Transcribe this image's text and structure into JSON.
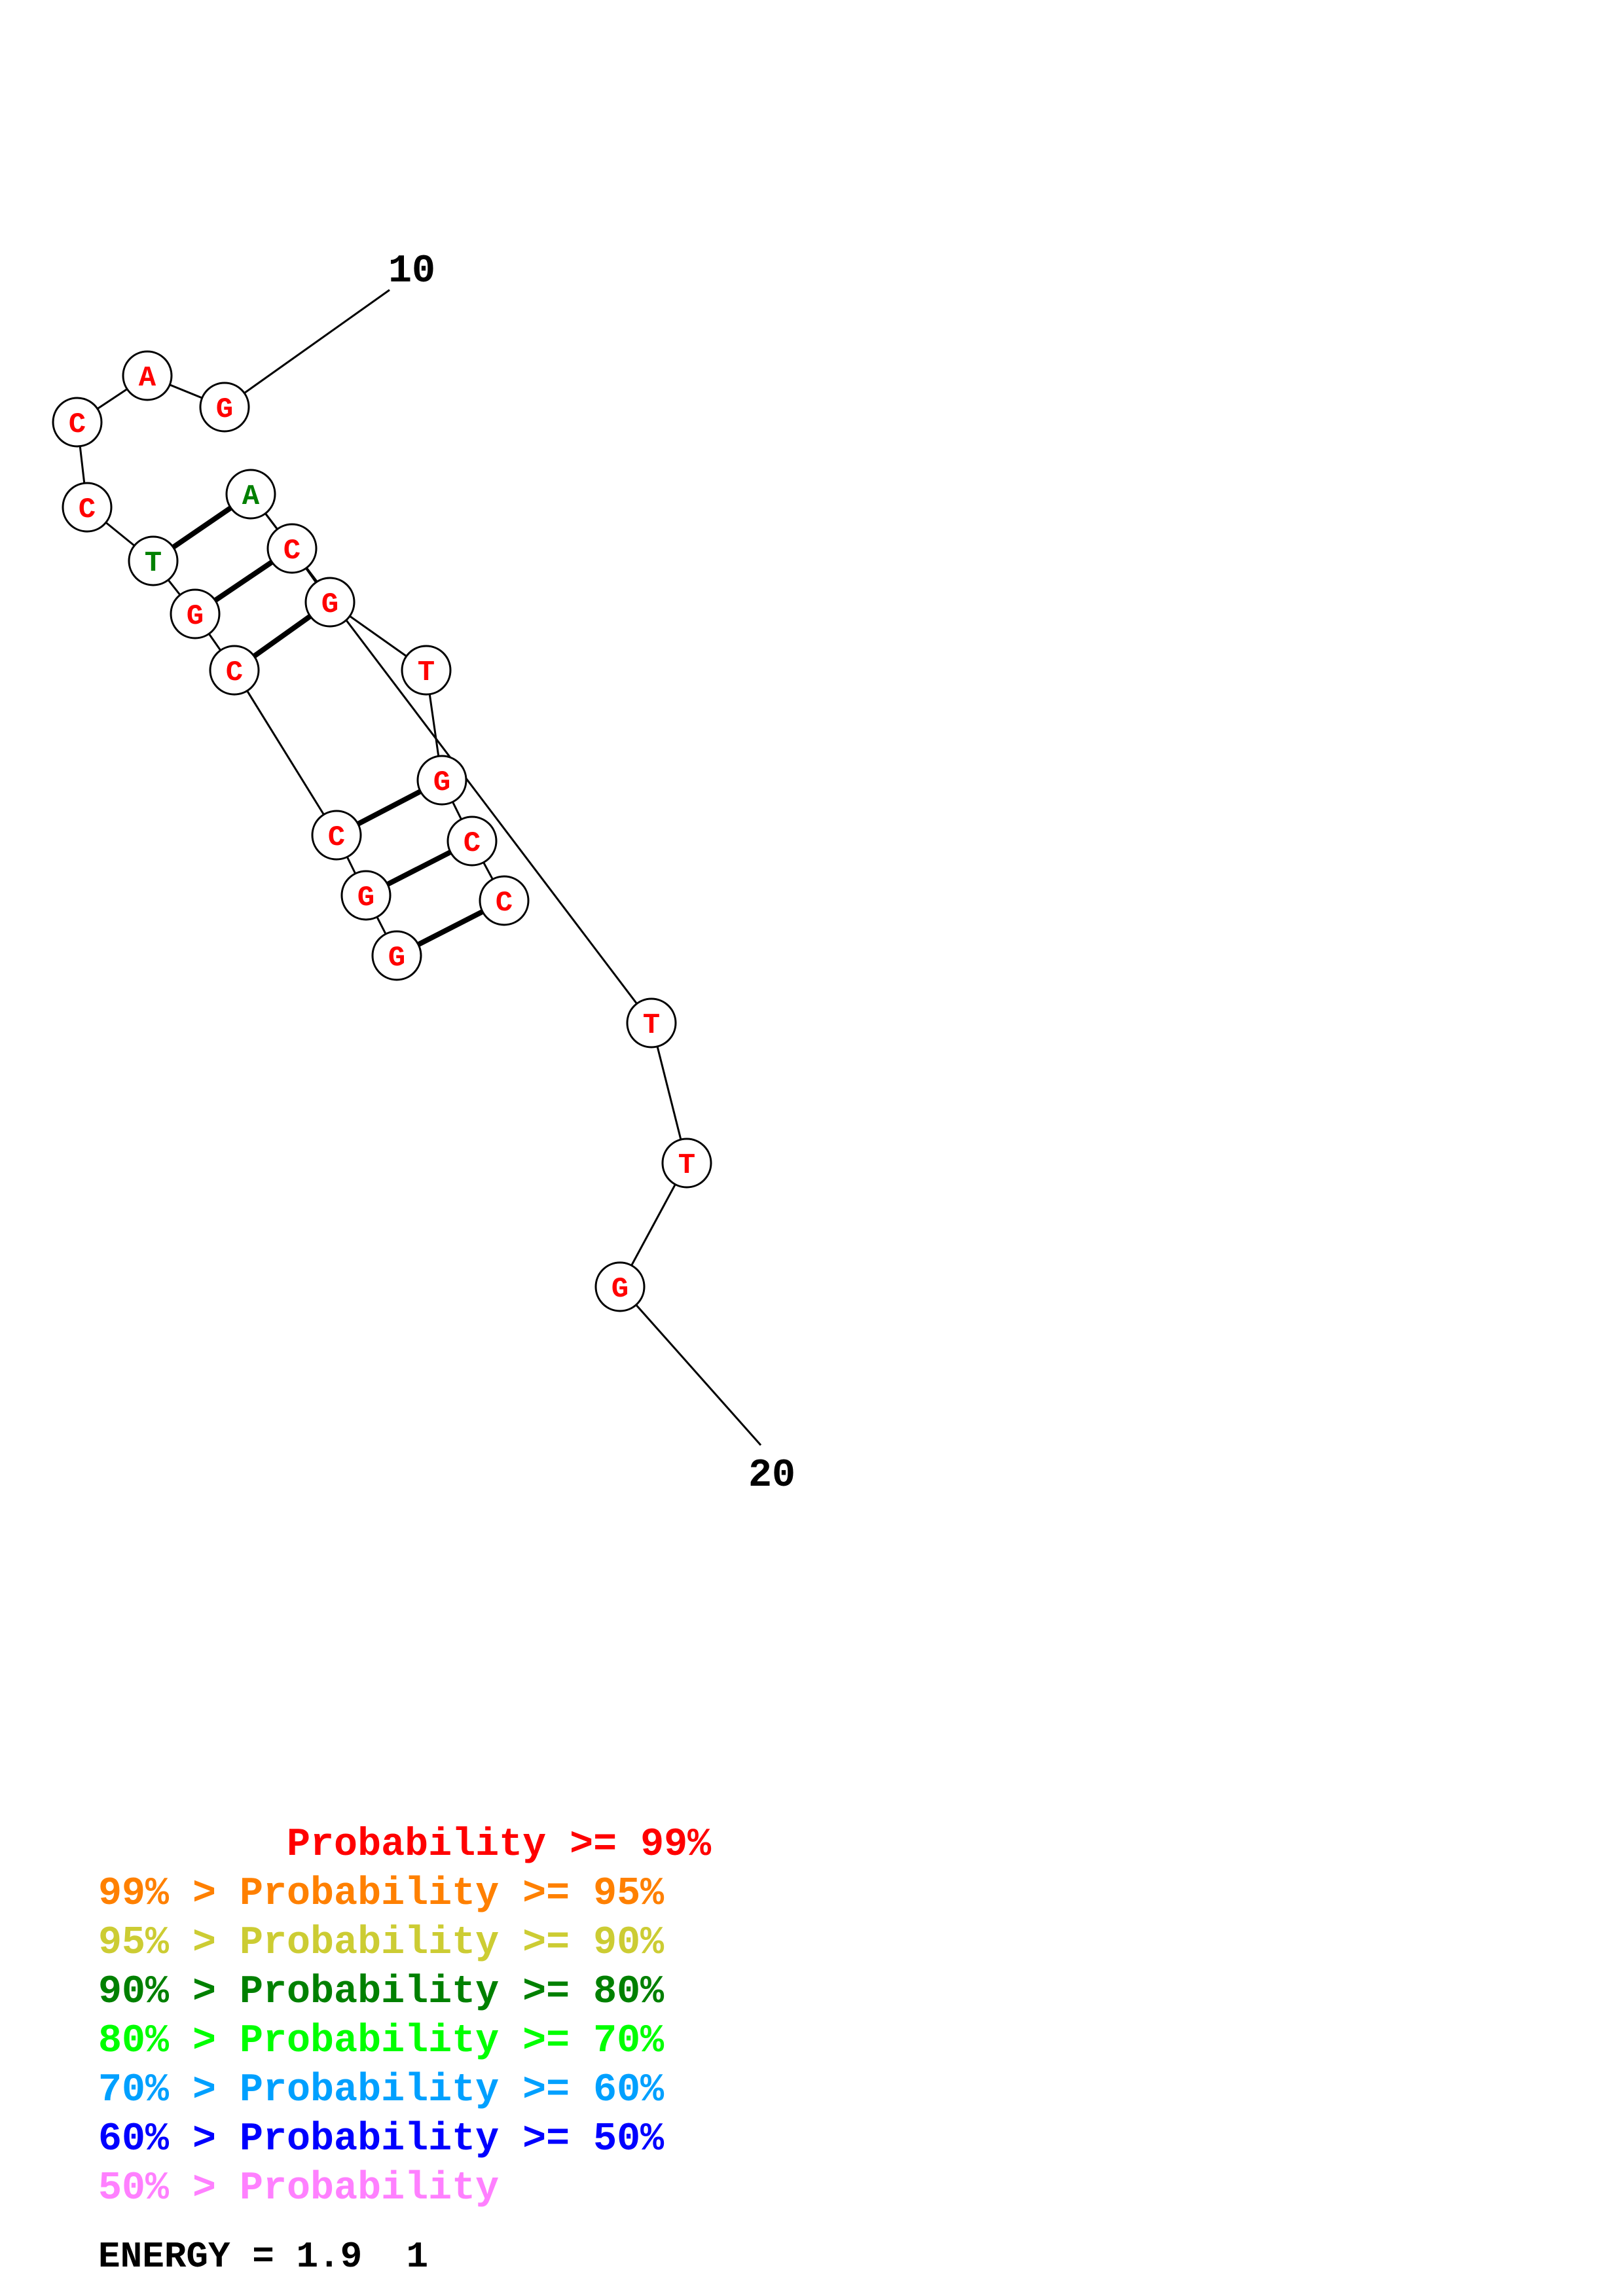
{
  "diagram": {
    "tick_labels": [
      "10",
      "20"
    ],
    "nucleotides": [
      {
        "id": "n10",
        "letter": "G",
        "color": "#ff0000"
      },
      {
        "id": "n11",
        "letter": "A",
        "color": "#ff0000"
      },
      {
        "id": "n12",
        "letter": "C",
        "color": "#ff0000"
      },
      {
        "id": "n13",
        "letter": "C",
        "color": "#ff0000"
      },
      {
        "id": "n14",
        "letter": "T",
        "color": "#008000"
      },
      {
        "id": "n15",
        "letter": "G",
        "color": "#ff0000"
      },
      {
        "id": "n16",
        "letter": "C",
        "color": "#ff0000"
      },
      {
        "id": "n17",
        "letter": "C",
        "color": "#ff0000"
      },
      {
        "id": "n18",
        "letter": "G",
        "color": "#ff0000"
      },
      {
        "id": "n19",
        "letter": "G",
        "color": "#ff0000"
      },
      {
        "id": "n20",
        "letter": "C",
        "color": "#ff0000"
      },
      {
        "id": "n21",
        "letter": "C",
        "color": "#ff0000"
      },
      {
        "id": "n22",
        "letter": "G",
        "color": "#ff0000"
      },
      {
        "id": "n23",
        "letter": "T",
        "color": "#ff0000"
      },
      {
        "id": "n24",
        "letter": "G",
        "color": "#ff0000"
      },
      {
        "id": "n25",
        "letter": "C",
        "color": "#ff0000"
      },
      {
        "id": "n26",
        "letter": "A",
        "color": "#008000"
      },
      {
        "id": "n27",
        "letter": "T",
        "color": "#ff0000"
      },
      {
        "id": "n28",
        "letter": "T",
        "color": "#ff0000"
      },
      {
        "id": "n29",
        "letter": "G",
        "color": "#ff0000"
      }
    ],
    "pairs": [
      [
        "n14",
        "n26"
      ],
      [
        "n15",
        "n25"
      ],
      [
        "n16",
        "n24"
      ],
      [
        "n17",
        "n22"
      ],
      [
        "n18",
        "n21"
      ],
      [
        "n19",
        "n20"
      ]
    ]
  },
  "legend": [
    {
      "text": "        Probability >= 99%",
      "color": "#ff0000"
    },
    {
      "text": "99% > Probability >= 95%",
      "color": "#ff8000"
    },
    {
      "text": "95% > Probability >= 90%",
      "color": "#cccc33"
    },
    {
      "text": "90% > Probability >= 80%",
      "color": "#008000"
    },
    {
      "text": "80% > Probability >= 70%",
      "color": "#00ff00"
    },
    {
      "text": "70% > Probability >= 60%",
      "color": "#00a0ff"
    },
    {
      "text": "60% > Probability >= 50%",
      "color": "#0000ff"
    },
    {
      "text": "50% > Probability",
      "color": "#ff80ff"
    }
  ],
  "energy_label": "ENERGY = 1.9  1"
}
